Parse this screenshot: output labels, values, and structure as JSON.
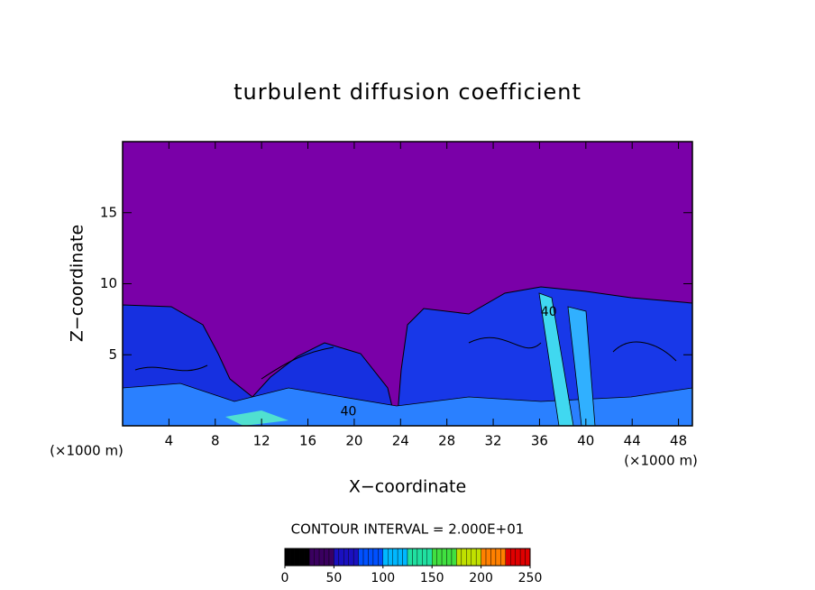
{
  "chart_data": {
    "type": "contour",
    "title": "turbulent diffusion coefficient",
    "x_label": "X−coordinate",
    "y_label": "Z−coordinate",
    "x_unit_left": "(×1000 m)",
    "x_unit_right": "(×1000 m)",
    "xlim": [
      0,
      49.2
    ],
    "xticks": [
      4,
      8,
      12,
      16,
      20,
      24,
      28,
      32,
      36,
      40,
      44,
      48
    ],
    "ylim": [
      0,
      20
    ],
    "yticks": [
      5,
      10,
      15
    ],
    "contour_labels": [
      {
        "x": 19.5,
        "y": 1,
        "value": 40
      },
      {
        "x": 36.8,
        "y": 8,
        "value": 40
      }
    ],
    "contour_interval_text": "CONTOUR INTERVAL = 2.000E+01",
    "colorbar": {
      "lim": [
        0,
        250
      ],
      "ticks": [
        0,
        50,
        100,
        150,
        200,
        250
      ],
      "colors": [
        "#000000",
        "#3a0060",
        "#1a10c0",
        "#0050ff",
        "#00b8ff",
        "#20e0a0",
        "#40e040",
        "#c0e000",
        "#ff8000",
        "#e00000"
      ]
    }
  }
}
